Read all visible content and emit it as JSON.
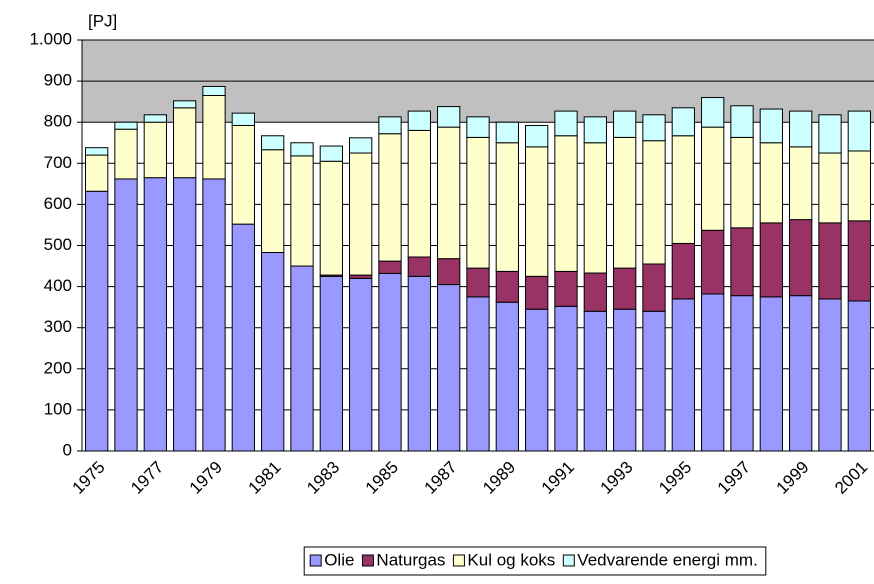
{
  "chart_data": {
    "type": "stacked_bar",
    "y_label": "[PJ]",
    "categories": [
      "1975",
      null,
      "1977",
      null,
      "1979",
      null,
      "1981",
      null,
      "1983",
      null,
      "1985",
      null,
      "1987",
      null,
      "1989",
      null,
      "1991",
      null,
      "1993",
      null,
      "1995",
      null,
      "1997",
      null,
      "1999",
      null,
      "2001"
    ],
    "series": [
      {
        "name": "Olie",
        "color": "#9999ff",
        "values": [
          632,
          662,
          665,
          665,
          662,
          552,
          483,
          450,
          425,
          420,
          432,
          425,
          405,
          375,
          362,
          345,
          352,
          340,
          345,
          340,
          370,
          382,
          378,
          375,
          378,
          370,
          365
        ]
      },
      {
        "name": "Naturgas",
        "color": "#993366",
        "values": [
          0,
          0,
          0,
          0,
          0,
          0,
          0,
          0,
          3,
          8,
          30,
          47,
          63,
          70,
          75,
          80,
          85,
          93,
          100,
          115,
          135,
          155,
          165,
          180,
          185,
          185,
          195
        ]
      },
      {
        "name": "Kul og koks",
        "color": "#ffffcc",
        "values": [
          88,
          121,
          135,
          170,
          203,
          240,
          250,
          268,
          277,
          297,
          310,
          308,
          320,
          318,
          313,
          315,
          330,
          317,
          318,
          300,
          262,
          251,
          220,
          195,
          177,
          170,
          170
        ]
      },
      {
        "name": "Vedvarende energi mm.",
        "color": "#ccffff",
        "values": [
          18,
          17,
          18,
          17,
          22,
          30,
          34,
          32,
          37,
          37,
          41,
          47,
          50,
          50,
          50,
          52,
          60,
          63,
          64,
          63,
          68,
          72,
          77,
          82,
          87,
          93,
          97
        ]
      }
    ],
    "ylim": [
      0,
      1000
    ],
    "yticks": [
      0,
      100,
      200,
      300,
      400,
      500,
      600,
      700,
      800,
      900,
      {
        "value": 1000,
        "label": "1.000"
      }
    ],
    "grid": true,
    "legend": "bottom"
  }
}
